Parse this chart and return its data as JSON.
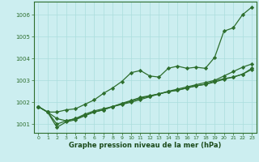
{
  "title": "Graphe pression niveau de la mer (hPa)",
  "background_color": "#cceef0",
  "grid_color": "#aadddd",
  "line_color": "#2d6e2d",
  "xlabel_color": "#1a4a1a",
  "ylim": [
    1000.6,
    1006.6
  ],
  "xlim": [
    -0.5,
    23.5
  ],
  "yticks": [
    1001,
    1002,
    1003,
    1004,
    1005,
    1006
  ],
  "xticks": [
    0,
    1,
    2,
    3,
    4,
    5,
    6,
    7,
    8,
    9,
    10,
    11,
    12,
    13,
    14,
    15,
    16,
    17,
    18,
    19,
    20,
    21,
    22,
    23
  ],
  "series": [
    [
      1001.8,
      1001.55,
      1001.55,
      1001.65,
      1001.7,
      1001.9,
      1002.1,
      1002.4,
      1002.65,
      1002.95,
      1003.35,
      1003.45,
      1003.2,
      1003.15,
      1003.55,
      1003.65,
      1003.55,
      1003.6,
      1003.55,
      1004.05,
      1005.25,
      1005.4,
      1006.0,
      1006.35
    ],
    [
      1001.8,
      1001.55,
      1001.25,
      1001.15,
      1001.25,
      1001.45,
      1001.6,
      1001.7,
      1001.8,
      1001.9,
      1002.0,
      1002.12,
      1002.25,
      1002.38,
      1002.5,
      1002.6,
      1002.7,
      1002.8,
      1002.9,
      1003.0,
      1003.2,
      1003.4,
      1003.6,
      1003.75
    ],
    [
      1001.8,
      1001.55,
      1001.0,
      1001.15,
      1001.25,
      1001.4,
      1001.55,
      1001.65,
      1001.8,
      1001.92,
      1002.05,
      1002.18,
      1002.28,
      1002.38,
      1002.48,
      1002.55,
      1002.65,
      1002.75,
      1002.82,
      1002.92,
      1003.05,
      1003.15,
      1003.28,
      1003.55
    ],
    [
      1001.8,
      1001.55,
      1000.85,
      1001.1,
      1001.2,
      1001.38,
      1001.55,
      1001.65,
      1001.8,
      1001.95,
      1002.08,
      1002.22,
      1002.3,
      1002.38,
      1002.48,
      1002.55,
      1002.65,
      1002.75,
      1002.82,
      1002.97,
      1003.08,
      1003.15,
      1003.28,
      1003.5
    ]
  ]
}
